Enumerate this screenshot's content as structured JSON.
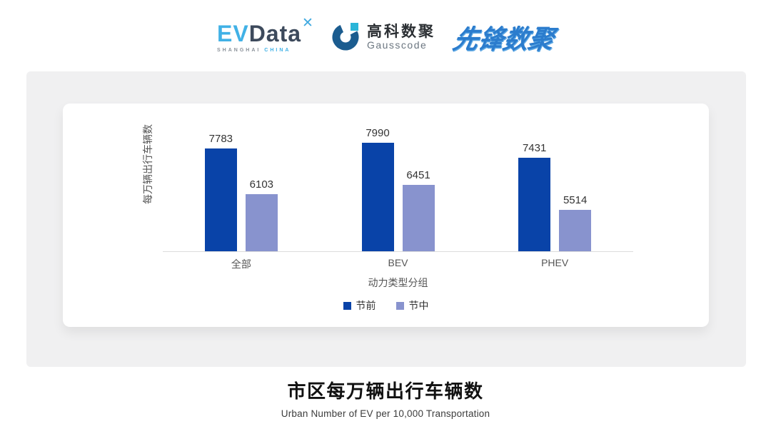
{
  "header": {
    "evdata": {
      "ev": "EV",
      "data": "Data",
      "mark": "✕",
      "tagline_left": "SHANGHAI",
      "tagline_right": "CHINA"
    },
    "gausscode": {
      "cn": "高科数聚",
      "en": "Gausscode"
    },
    "pioneer": {
      "text": "先锋数聚"
    }
  },
  "chart_data": {
    "type": "bar",
    "categories": [
      "全部",
      "BEV",
      "PHEV"
    ],
    "series": [
      {
        "name": "节前",
        "color": "#0943a8",
        "values": [
          7783,
          7990,
          7431
        ]
      },
      {
        "name": "节中",
        "color": "#8893ce",
        "values": [
          6103,
          6451,
          5514
        ]
      }
    ],
    "ylabel": "每万辆出行车辆数",
    "xlabel": "动力类型分组",
    "ylim": [
      4000,
      8200
    ],
    "grid": false,
    "legend_position": "bottom",
    "value_labels": true
  },
  "footer": {
    "title": "市区每万辆出行车辆数",
    "subtitle": "Urban Number of EV per 10,000 Transportation"
  },
  "colors": {
    "bar_pre": "#0943a8",
    "bar_during": "#8893ce",
    "panel_bg": "#f0f0f1",
    "axis_line": "#dcdcdc",
    "evdata_blue": "#41b1e6",
    "evdata_dark": "#3d4a5c",
    "gausscode_navy": "#1b5c8f",
    "gausscode_cyan": "#2ab5d8",
    "pioneer_blue": "#2b7ccd"
  }
}
